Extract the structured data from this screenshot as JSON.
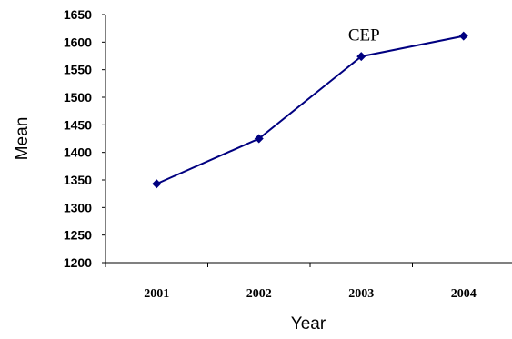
{
  "chart_data": {
    "type": "line",
    "xlabel": "Year",
    "ylabel": "Mean",
    "categories": [
      "2001",
      "2002",
      "2003",
      "2004"
    ],
    "series": [
      {
        "values": [
          1343,
          1425,
          1574,
          1611
        ],
        "color": "#000080",
        "marker": "diamond"
      }
    ],
    "ylim": [
      1200,
      1650
    ],
    "yticks": [
      1200,
      1250,
      1300,
      1350,
      1400,
      1450,
      1500,
      1550,
      1600,
      1650
    ],
    "annotations": [
      {
        "text": "CEP",
        "category": "2003"
      }
    ],
    "grid": false,
    "legend": "none"
  }
}
